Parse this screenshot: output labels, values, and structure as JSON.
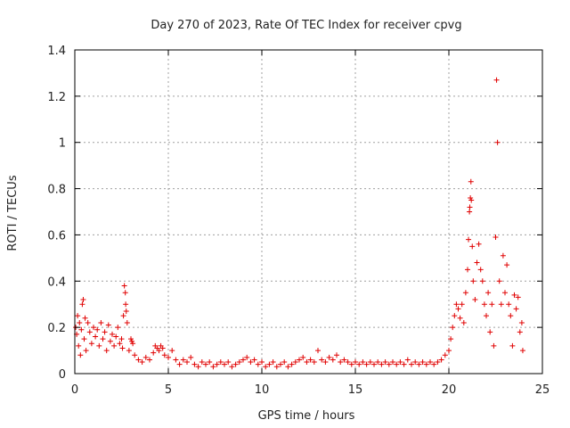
{
  "chart_data": {
    "type": "scatter",
    "title": "Day 270 of 2023, Rate Of TEC Index for receiver cpvg",
    "xlabel": "GPS time / hours",
    "ylabel": "ROTI / TECUs",
    "xlim": [
      0,
      25
    ],
    "ylim": [
      0,
      1.4
    ],
    "xticks": [
      "0",
      "5",
      "10",
      "15",
      "20",
      "25"
    ],
    "yticks": [
      "0",
      "0.2",
      "0.4",
      "0.6",
      "0.8",
      "1",
      "1.2",
      "1.4"
    ],
    "grid": true,
    "marker": "+",
    "marker_color": "#e00000",
    "series": [
      {
        "values": [
          [
            0.05,
            0.2
          ],
          [
            0.1,
            0.17
          ],
          [
            0.15,
            0.25
          ],
          [
            0.2,
            0.12
          ],
          [
            0.25,
            0.22
          ],
          [
            0.3,
            0.08
          ],
          [
            0.35,
            0.19
          ],
          [
            0.4,
            0.3
          ],
          [
            0.45,
            0.32
          ],
          [
            0.5,
            0.15
          ],
          [
            0.55,
            0.24
          ],
          [
            0.6,
            0.1
          ],
          [
            0.7,
            0.22
          ],
          [
            0.8,
            0.18
          ],
          [
            0.9,
            0.13
          ],
          [
            1.0,
            0.2
          ],
          [
            1.1,
            0.16
          ],
          [
            1.2,
            0.19
          ],
          [
            1.3,
            0.12
          ],
          [
            1.4,
            0.22
          ],
          [
            1.5,
            0.15
          ],
          [
            1.6,
            0.18
          ],
          [
            1.7,
            0.1
          ],
          [
            1.8,
            0.21
          ],
          [
            1.9,
            0.14
          ],
          [
            2.0,
            0.17
          ],
          [
            2.1,
            0.12
          ],
          [
            2.2,
            0.16
          ],
          [
            2.3,
            0.2
          ],
          [
            2.4,
            0.13
          ],
          [
            2.5,
            0.15
          ],
          [
            2.55,
            0.11
          ],
          [
            2.6,
            0.25
          ],
          [
            2.65,
            0.38
          ],
          [
            2.7,
            0.35
          ],
          [
            2.72,
            0.3
          ],
          [
            2.75,
            0.27
          ],
          [
            2.8,
            0.22
          ],
          [
            2.9,
            0.1
          ],
          [
            3.0,
            0.15
          ],
          [
            3.05,
            0.14
          ],
          [
            3.1,
            0.13
          ],
          [
            3.2,
            0.08
          ],
          [
            3.4,
            0.06
          ],
          [
            3.6,
            0.05
          ],
          [
            3.8,
            0.07
          ],
          [
            4.0,
            0.06
          ],
          [
            4.2,
            0.09
          ],
          [
            4.3,
            0.12
          ],
          [
            4.4,
            0.11
          ],
          [
            4.5,
            0.1
          ],
          [
            4.6,
            0.12
          ],
          [
            4.7,
            0.11
          ],
          [
            4.8,
            0.08
          ],
          [
            5.0,
            0.07
          ],
          [
            5.2,
            0.1
          ],
          [
            5.4,
            0.06
          ],
          [
            5.6,
            0.04
          ],
          [
            5.8,
            0.06
          ],
          [
            6.0,
            0.05
          ],
          [
            6.2,
            0.07
          ],
          [
            6.4,
            0.04
          ],
          [
            6.6,
            0.03
          ],
          [
            6.8,
            0.05
          ],
          [
            7.0,
            0.04
          ],
          [
            7.2,
            0.05
          ],
          [
            7.4,
            0.03
          ],
          [
            7.6,
            0.04
          ],
          [
            7.8,
            0.05
          ],
          [
            8.0,
            0.04
          ],
          [
            8.2,
            0.05
          ],
          [
            8.4,
            0.03
          ],
          [
            8.6,
            0.04
          ],
          [
            8.8,
            0.05
          ],
          [
            9.0,
            0.06
          ],
          [
            9.2,
            0.07
          ],
          [
            9.4,
            0.05
          ],
          [
            9.6,
            0.06
          ],
          [
            9.8,
            0.04
          ],
          [
            10.0,
            0.05
          ],
          [
            10.2,
            0.03
          ],
          [
            10.4,
            0.04
          ],
          [
            10.6,
            0.05
          ],
          [
            10.8,
            0.03
          ],
          [
            11.0,
            0.04
          ],
          [
            11.2,
            0.05
          ],
          [
            11.4,
            0.03
          ],
          [
            11.6,
            0.04
          ],
          [
            11.8,
            0.05
          ],
          [
            12.0,
            0.06
          ],
          [
            12.2,
            0.07
          ],
          [
            12.4,
            0.05
          ],
          [
            12.6,
            0.06
          ],
          [
            12.8,
            0.05
          ],
          [
            13.0,
            0.1
          ],
          [
            13.2,
            0.06
          ],
          [
            13.4,
            0.05
          ],
          [
            13.6,
            0.07
          ],
          [
            13.8,
            0.06
          ],
          [
            14.0,
            0.08
          ],
          [
            14.2,
            0.05
          ],
          [
            14.4,
            0.06
          ],
          [
            14.6,
            0.05
          ],
          [
            14.8,
            0.04
          ],
          [
            15.0,
            0.05
          ],
          [
            15.2,
            0.04
          ],
          [
            15.4,
            0.05
          ],
          [
            15.6,
            0.04
          ],
          [
            15.8,
            0.05
          ],
          [
            16.0,
            0.04
          ],
          [
            16.2,
            0.05
          ],
          [
            16.4,
            0.04
          ],
          [
            16.6,
            0.05
          ],
          [
            16.8,
            0.04
          ],
          [
            17.0,
            0.05
          ],
          [
            17.2,
            0.04
          ],
          [
            17.4,
            0.05
          ],
          [
            17.6,
            0.04
          ],
          [
            17.8,
            0.06
          ],
          [
            18.0,
            0.04
          ],
          [
            18.2,
            0.05
          ],
          [
            18.4,
            0.04
          ],
          [
            18.6,
            0.05
          ],
          [
            18.8,
            0.04
          ],
          [
            19.0,
            0.05
          ],
          [
            19.2,
            0.04
          ],
          [
            19.4,
            0.05
          ],
          [
            19.6,
            0.06
          ],
          [
            19.8,
            0.08
          ],
          [
            20.0,
            0.1
          ],
          [
            20.1,
            0.15
          ],
          [
            20.2,
            0.2
          ],
          [
            20.3,
            0.25
          ],
          [
            20.4,
            0.3
          ],
          [
            20.5,
            0.28
          ],
          [
            20.6,
            0.24
          ],
          [
            20.7,
            0.3
          ],
          [
            20.8,
            0.22
          ],
          [
            20.9,
            0.35
          ],
          [
            21.0,
            0.45
          ],
          [
            21.05,
            0.58
          ],
          [
            21.1,
            0.7
          ],
          [
            21.12,
            0.72
          ],
          [
            21.15,
            0.76
          ],
          [
            21.18,
            0.83
          ],
          [
            21.2,
            0.75
          ],
          [
            21.25,
            0.55
          ],
          [
            21.3,
            0.4
          ],
          [
            21.4,
            0.32
          ],
          [
            21.5,
            0.48
          ],
          [
            21.6,
            0.56
          ],
          [
            21.7,
            0.45
          ],
          [
            21.8,
            0.4
          ],
          [
            21.9,
            0.3
          ],
          [
            22.0,
            0.25
          ],
          [
            22.1,
            0.35
          ],
          [
            22.2,
            0.18
          ],
          [
            22.3,
            0.3
          ],
          [
            22.4,
            0.12
          ],
          [
            22.5,
            0.59
          ],
          [
            22.55,
            1.27
          ],
          [
            22.6,
            1.0
          ],
          [
            22.7,
            0.4
          ],
          [
            22.8,
            0.3
          ],
          [
            22.9,
            0.51
          ],
          [
            23.0,
            0.35
          ],
          [
            23.1,
            0.47
          ],
          [
            23.2,
            0.3
          ],
          [
            23.3,
            0.25
          ],
          [
            23.4,
            0.12
          ],
          [
            23.5,
            0.34
          ],
          [
            23.6,
            0.28
          ],
          [
            23.7,
            0.33
          ],
          [
            23.8,
            0.18
          ],
          [
            23.9,
            0.22
          ],
          [
            23.95,
            0.1
          ]
        ]
      }
    ]
  }
}
